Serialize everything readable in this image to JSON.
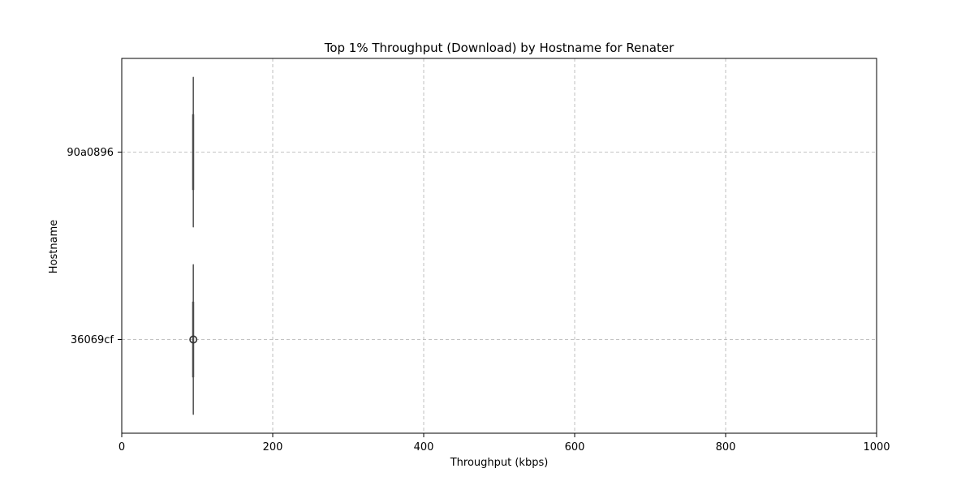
{
  "chart_data": {
    "type": "box",
    "orientation": "horizontal",
    "title": "Top 1% Throughput (Download) by Hostname for Renater",
    "xlabel": "Throughput (kbps)",
    "ylabel": "Hostname",
    "xlim": [
      0,
      1000
    ],
    "x_ticks": [
      "0",
      "200",
      "400",
      "600",
      "800",
      "1000"
    ],
    "categories": [
      "90a0896",
      "36069cf"
    ],
    "grid": true,
    "grid_style": "dashed",
    "box_color": "#4d4d4d",
    "boxes": [
      {
        "category": "90a0896",
        "whisker_low": 94.3,
        "q1": 94.6,
        "median": 94.8,
        "q3": 95.0,
        "whisker_high": 95.3,
        "outliers": []
      },
      {
        "category": "36069cf",
        "whisker_low": 94.3,
        "q1": 94.6,
        "median": 94.8,
        "q3": 95.0,
        "whisker_high": 95.3,
        "outliers": [
          94.0
        ]
      }
    ]
  }
}
